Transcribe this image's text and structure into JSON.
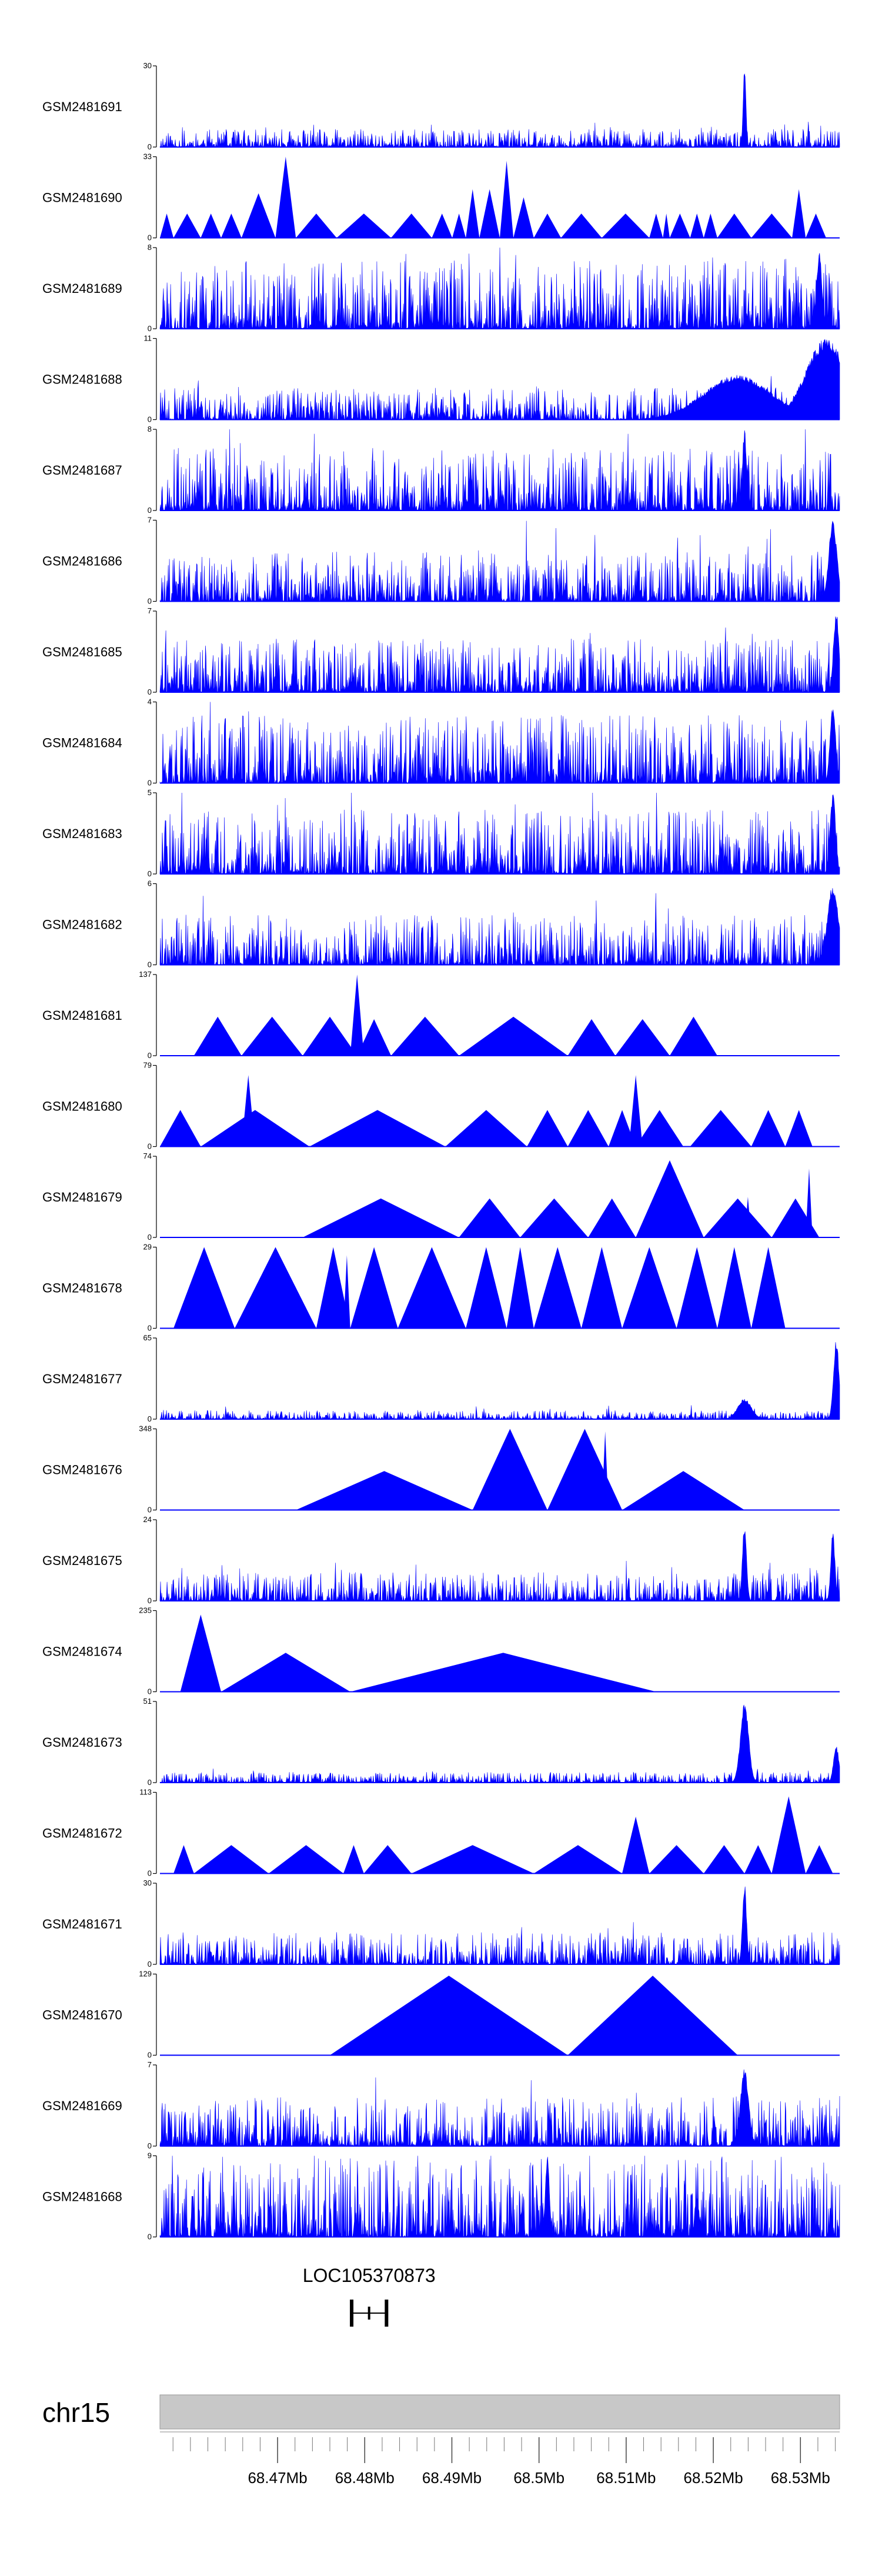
{
  "chart_data": {
    "type": "area",
    "title": "",
    "tracks": [
      {
        "label": "GSM2481691",
        "ymax": 30,
        "style": "noise",
        "seed": 11,
        "base": 0.1,
        "peaks": [
          [
            0.86,
            1.0,
            0.002
          ]
        ]
      },
      {
        "label": "GSM2481690",
        "ymax": 33,
        "style": "tri",
        "seed": 22,
        "tris": [
          [
            0.0,
            0.02,
            0.3
          ],
          [
            0.02,
            0.06,
            0.3
          ],
          [
            0.06,
            0.09,
            0.3
          ],
          [
            0.09,
            0.12,
            0.3
          ],
          [
            0.12,
            0.17,
            0.55
          ],
          [
            0.17,
            0.2,
            1.0
          ],
          [
            0.2,
            0.26,
            0.3
          ],
          [
            0.26,
            0.34,
            0.3
          ],
          [
            0.34,
            0.4,
            0.3
          ],
          [
            0.4,
            0.43,
            0.3
          ],
          [
            0.43,
            0.45,
            0.3
          ],
          [
            0.45,
            0.47,
            0.6
          ],
          [
            0.47,
            0.5,
            0.6
          ],
          [
            0.5,
            0.52,
            0.95
          ],
          [
            0.52,
            0.55,
            0.5
          ],
          [
            0.55,
            0.59,
            0.3
          ],
          [
            0.59,
            0.65,
            0.3
          ],
          [
            0.65,
            0.72,
            0.3
          ],
          [
            0.72,
            0.74,
            0.3
          ],
          [
            0.74,
            0.75,
            0.3
          ],
          [
            0.75,
            0.78,
            0.3
          ],
          [
            0.78,
            0.8,
            0.3
          ],
          [
            0.8,
            0.82,
            0.3
          ],
          [
            0.82,
            0.87,
            0.3
          ],
          [
            0.87,
            0.93,
            0.3
          ],
          [
            0.93,
            0.95,
            0.6
          ],
          [
            0.95,
            0.98,
            0.3
          ]
        ]
      },
      {
        "label": "GSM2481689",
        "ymax": 8,
        "style": "noise",
        "seed": 33,
        "base": 0.38,
        "peaks": [
          [
            0.97,
            0.95,
            0.004
          ]
        ]
      },
      {
        "label": "GSM2481688",
        "ymax": 11,
        "style": "noise",
        "seed": 44,
        "base": 0.18,
        "peaks": [
          [
            0.85,
            0.55,
            0.05
          ],
          [
            0.98,
            1.0,
            0.03
          ]
        ]
      },
      {
        "label": "GSM2481687",
        "ymax": 8,
        "style": "noise",
        "seed": 55,
        "base": 0.35,
        "peaks": [
          [
            0.86,
            1.0,
            0.003
          ]
        ]
      },
      {
        "label": "GSM2481686",
        "ymax": 7,
        "style": "noise",
        "seed": 66,
        "base": 0.28,
        "peaks": [
          [
            0.99,
            1.0,
            0.006
          ]
        ]
      },
      {
        "label": "GSM2481685",
        "ymax": 7,
        "style": "noise",
        "seed": 77,
        "base": 0.3,
        "peaks": [
          [
            0.995,
            1.0,
            0.004
          ]
        ]
      },
      {
        "label": "GSM2481684",
        "ymax": 4,
        "style": "noise",
        "seed": 88,
        "base": 0.38,
        "peaks": [
          [
            0.99,
            1.0,
            0.004
          ]
        ]
      },
      {
        "label": "GSM2481683",
        "ymax": 5,
        "style": "noise",
        "seed": 99,
        "base": 0.36,
        "peaks": [
          [
            0.99,
            1.0,
            0.004
          ]
        ]
      },
      {
        "label": "GSM2481682",
        "ymax": 6,
        "style": "noise",
        "seed": 111,
        "base": 0.28,
        "peaks": [
          [
            0.99,
            1.0,
            0.008
          ]
        ]
      },
      {
        "label": "GSM2481681",
        "ymax": 137,
        "style": "tri",
        "seed": 0,
        "tris": [
          [
            0.05,
            0.12,
            0.48
          ],
          [
            0.12,
            0.21,
            0.48
          ],
          [
            0.21,
            0.29,
            0.48
          ],
          [
            0.29,
            0.34,
            0.45
          ],
          [
            0.34,
            0.44,
            0.48
          ],
          [
            0.44,
            0.6,
            0.48
          ],
          [
            0.6,
            0.67,
            0.45
          ],
          [
            0.67,
            0.75,
            0.45
          ],
          [
            0.75,
            0.82,
            0.48
          ],
          [
            0.28,
            0.3,
            1.0
          ]
        ]
      },
      {
        "label": "GSM2481680",
        "ymax": 79,
        "style": "tri",
        "seed": 0,
        "tris": [
          [
            0.0,
            0.06,
            0.45
          ],
          [
            0.06,
            0.22,
            0.45
          ],
          [
            0.22,
            0.42,
            0.45
          ],
          [
            0.42,
            0.54,
            0.45
          ],
          [
            0.54,
            0.6,
            0.45
          ],
          [
            0.6,
            0.66,
            0.45
          ],
          [
            0.66,
            0.7,
            0.45
          ],
          [
            0.7,
            0.77,
            0.45
          ],
          [
            0.78,
            0.87,
            0.45
          ],
          [
            0.87,
            0.92,
            0.45
          ],
          [
            0.92,
            0.96,
            0.45
          ],
          [
            0.12,
            0.14,
            0.88
          ],
          [
            0.69,
            0.71,
            0.88
          ]
        ]
      },
      {
        "label": "GSM2481679",
        "ymax": 74,
        "style": "tri",
        "seed": 0,
        "tris": [
          [
            0.21,
            0.44,
            0.48
          ],
          [
            0.44,
            0.53,
            0.48
          ],
          [
            0.53,
            0.63,
            0.48
          ],
          [
            0.63,
            0.7,
            0.48
          ],
          [
            0.7,
            0.8,
            0.95
          ],
          [
            0.8,
            0.9,
            0.48
          ],
          [
            0.9,
            0.97,
            0.48
          ],
          [
            0.86,
            0.87,
            0.5
          ],
          [
            0.95,
            0.96,
            0.85
          ]
        ]
      },
      {
        "label": "GSM2481678",
        "ymax": 29,
        "style": "tri",
        "seed": 0,
        "tris": [
          [
            0.02,
            0.11,
            1.0
          ],
          [
            0.11,
            0.23,
            1.0
          ],
          [
            0.23,
            0.28,
            1.0
          ],
          [
            0.28,
            0.35,
            1.0
          ],
          [
            0.35,
            0.45,
            1.0
          ],
          [
            0.45,
            0.51,
            1.0
          ],
          [
            0.51,
            0.55,
            1.0
          ],
          [
            0.55,
            0.62,
            1.0
          ],
          [
            0.62,
            0.68,
            1.0
          ],
          [
            0.68,
            0.76,
            1.0
          ],
          [
            0.76,
            0.82,
            1.0
          ],
          [
            0.82,
            0.87,
            1.0
          ],
          [
            0.87,
            0.92,
            1.0
          ],
          [
            0.27,
            0.28,
            0.9
          ],
          [
            0.84,
            0.85,
            0.9
          ]
        ]
      },
      {
        "label": "GSM2481677",
        "ymax": 65,
        "style": "noise",
        "seed": 122,
        "base": 0.05,
        "peaks": [
          [
            0.86,
            0.25,
            0.01
          ],
          [
            0.995,
            1.0,
            0.004
          ]
        ]
      },
      {
        "label": "GSM2481676",
        "ymax": 348,
        "style": "tri",
        "seed": 0,
        "tris": [
          [
            0.2,
            0.46,
            0.48
          ],
          [
            0.46,
            0.57,
            1.0
          ],
          [
            0.57,
            0.68,
            1.0
          ],
          [
            0.68,
            0.86,
            0.48
          ],
          [
            0.65,
            0.66,
            0.97
          ]
        ]
      },
      {
        "label": "GSM2481675",
        "ymax": 24,
        "style": "noise",
        "seed": 133,
        "base": 0.16,
        "peaks": [
          [
            0.86,
            0.95,
            0.003
          ],
          [
            0.99,
            0.85,
            0.003
          ]
        ]
      },
      {
        "label": "GSM2481674",
        "ymax": 235,
        "style": "tri",
        "seed": 0,
        "tris": [
          [
            0.03,
            0.09,
            0.95
          ],
          [
            0.09,
            0.28,
            0.48
          ],
          [
            0.28,
            0.73,
            0.48
          ]
        ]
      },
      {
        "label": "GSM2481673",
        "ymax": 51,
        "style": "noise",
        "seed": 144,
        "base": 0.06,
        "peaks": [
          [
            0.86,
            1.0,
            0.006
          ],
          [
            0.995,
            0.45,
            0.004
          ]
        ]
      },
      {
        "label": "GSM2481672",
        "ymax": 113,
        "style": "tri",
        "seed": 0,
        "tris": [
          [
            0.02,
            0.05,
            0.35
          ],
          [
            0.05,
            0.16,
            0.35
          ],
          [
            0.16,
            0.27,
            0.35
          ],
          [
            0.27,
            0.3,
            0.35
          ],
          [
            0.3,
            0.37,
            0.35
          ],
          [
            0.37,
            0.55,
            0.35
          ],
          [
            0.55,
            0.68,
            0.35
          ],
          [
            0.68,
            0.72,
            0.7
          ],
          [
            0.72,
            0.8,
            0.35
          ],
          [
            0.8,
            0.86,
            0.35
          ],
          [
            0.86,
            0.9,
            0.35
          ],
          [
            0.9,
            0.95,
            0.95
          ],
          [
            0.95,
            0.99,
            0.35
          ]
        ]
      },
      {
        "label": "GSM2481671",
        "ymax": 30,
        "style": "noise",
        "seed": 155,
        "base": 0.18,
        "peaks": [
          [
            0.86,
            1.0,
            0.003
          ]
        ]
      },
      {
        "label": "GSM2481670",
        "ymax": 129,
        "style": "tri",
        "seed": 0,
        "tris": [
          [
            0.25,
            0.6,
            0.98
          ],
          [
            0.6,
            0.85,
            0.98
          ]
        ]
      },
      {
        "label": "GSM2481669",
        "ymax": 7,
        "style": "noise",
        "seed": 166,
        "base": 0.28,
        "peaks": [
          [
            0.86,
            0.98,
            0.006
          ]
        ]
      },
      {
        "label": "GSM2481668",
        "ymax": 9,
        "style": "noise",
        "seed": 177,
        "base": 0.45,
        "peaks": [
          [
            0.57,
            1.0,
            0.003
          ],
          [
            0.79,
            0.5,
            0.003
          ]
        ]
      }
    ],
    "gene": {
      "name": "LOC105370873",
      "start_mb": 68.4785,
      "end_mb": 68.4825
    },
    "chromosome": "chr15",
    "xlim_mb": [
      68.4565,
      68.5345
    ],
    "major_ticks_mb": [
      68.47,
      68.48,
      68.49,
      68.5,
      68.51,
      68.52,
      68.53
    ],
    "tick_labels": [
      "68.47Mb",
      "68.48Mb",
      "68.49Mb",
      "68.5Mb",
      "68.51Mb",
      "68.52Mb",
      "68.53Mb"
    ],
    "minor_tick_step_mb": 0.002,
    "fill_color": "#0000FF",
    "axis_color": "#000000",
    "ideogram_color": "#C8C8C8"
  }
}
